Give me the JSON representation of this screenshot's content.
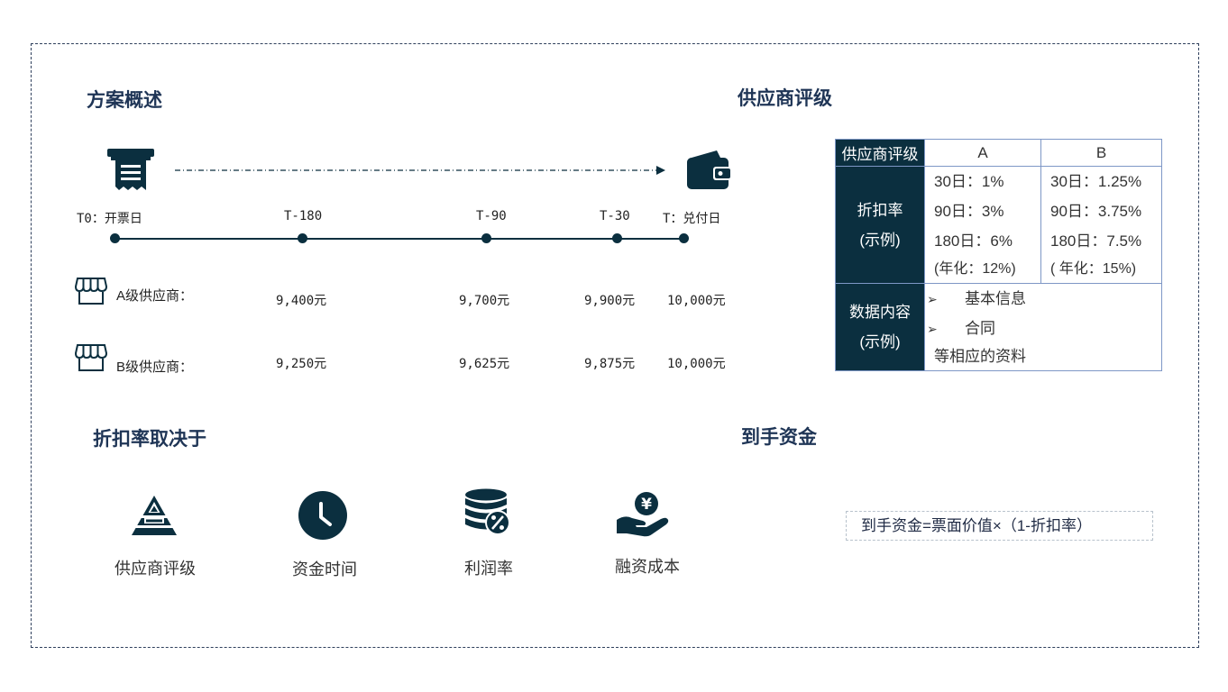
{
  "overview": {
    "title": "方案概述",
    "timeline_points": [
      "T0：开票日",
      "T-180",
      "T-90",
      "T-30",
      "T：兑付日"
    ],
    "suppliers": [
      {
        "label": "A级供应商：",
        "amounts": [
          "9,400元",
          "9,700元",
          "9,900元",
          "10,000元"
        ]
      },
      {
        "label": "B级供应商：",
        "amounts": [
          "9,250元",
          "9,625元",
          "9,875元",
          "10,000元"
        ]
      }
    ],
    "icons": {
      "start": "invoice-printer-icon",
      "end": "wallet-icon",
      "supplier": "store-icon"
    }
  },
  "rating": {
    "title": "供应商评级",
    "table": {
      "header": [
        "供应商评级",
        "A",
        "B"
      ],
      "discount_label_line1": "折扣率",
      "discount_label_line2": "(示例)",
      "a_rates": [
        "30日：1%",
        "90日：3%",
        "180日：6%",
        "(年化：12%)"
      ],
      "b_rates": [
        "30日：1.25%",
        "90日：3.75%",
        "180日：7.5%",
        "( 年化：15%)"
      ],
      "content_label_line1": "数据内容",
      "content_label_line2": "(示例)",
      "content_items": [
        "基本信息",
        "合同",
        "等相应的资料"
      ]
    }
  },
  "factors": {
    "title": "折扣率取决于",
    "items": [
      {
        "label": "供应商评级",
        "icon": "pyramid-icon"
      },
      {
        "label": "资金时间",
        "icon": "clock-icon"
      },
      {
        "label": "利润率",
        "icon": "coins-percent-icon"
      },
      {
        "label": "融资成本",
        "icon": "hand-yen-icon"
      }
    ]
  },
  "funds": {
    "title": "到手资金",
    "formula": "到手资金=票面价值×（1-折扣率）"
  },
  "colors": {
    "dark": "#0b2f3f",
    "title": "#1f3556",
    "border": "#7e97c6"
  }
}
